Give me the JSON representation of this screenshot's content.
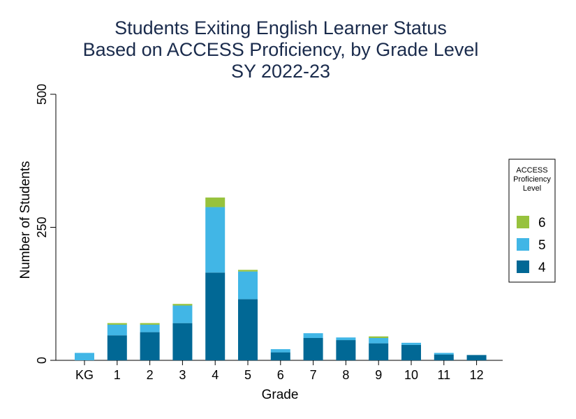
{
  "chart_data": {
    "type": "bar",
    "stacked": true,
    "title_lines": [
      "Students Exiting English Learner Status",
      "Based on ACCESS Proficiency, by Grade Level",
      "SY 2022-23"
    ],
    "xlabel": "Grade",
    "ylabel": "Number of Students",
    "ylim": [
      0,
      500
    ],
    "yticks": [
      "0",
      "250",
      "500"
    ],
    "ytick_values": [
      0,
      250,
      500
    ],
    "grid": false,
    "categories": [
      "KG",
      "1",
      "2",
      "3",
      "4",
      "5",
      "6",
      "7",
      "8",
      "9",
      "10",
      "11",
      "12"
    ],
    "series": [
      {
        "name": "4",
        "color": "#016895",
        "values": [
          0,
          47,
          53,
          70,
          165,
          115,
          15,
          42,
          38,
          32,
          29,
          11,
          10
        ]
      },
      {
        "name": "5",
        "color": "#41b6e6",
        "values": [
          14,
          20,
          14,
          33,
          123,
          52,
          6,
          9,
          5,
          10,
          4,
          3,
          0
        ]
      },
      {
        "name": "6",
        "color": "#97c23d",
        "values": [
          0,
          3,
          3,
          3,
          18,
          3,
          0,
          0,
          0,
          3,
          0,
          0,
          0
        ]
      }
    ],
    "legend": {
      "title_lines": [
        "ACCESS",
        "Proficiency",
        "Level"
      ],
      "placement": "right",
      "order": [
        "6",
        "5",
        "4"
      ]
    }
  }
}
